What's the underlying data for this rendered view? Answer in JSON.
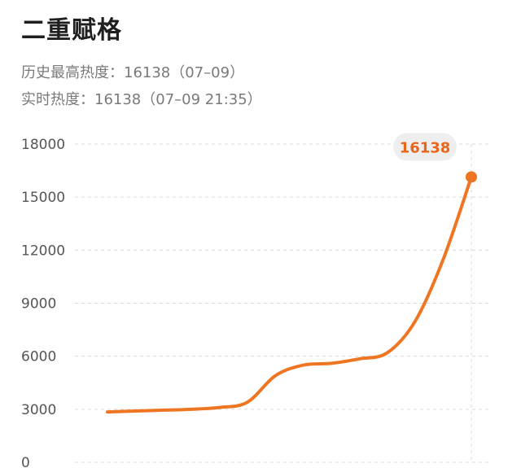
{
  "header": {
    "title": "二重赋格",
    "peak_line": "历史最高热度：16138（07–09）",
    "realtime_line": "实时热度：16138（07–09 21:35）"
  },
  "colors": {
    "line": "#ee7623",
    "grid": "#d9d9d9",
    "badge_bg": "#eeeeee",
    "badge_text": "#e8661c"
  },
  "chart_data": {
    "type": "line",
    "ylim": [
      0,
      18000
    ],
    "yticks": [
      0,
      3000,
      6000,
      9000,
      12000,
      15000,
      18000
    ],
    "grid": true,
    "series": [
      {
        "values": [
          2850,
          2900,
          2950,
          3000,
          3100,
          3400,
          4900,
          5500,
          5600,
          5850,
          6200,
          8000,
          11500,
          16138
        ]
      }
    ],
    "peak_label": "16138"
  }
}
